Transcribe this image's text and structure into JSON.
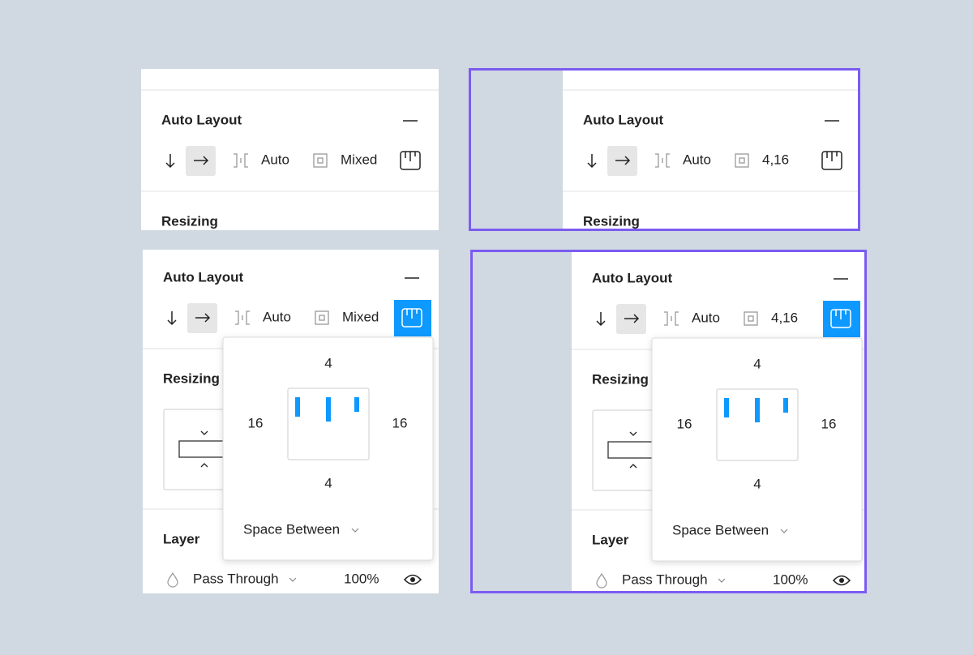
{
  "panels": [
    {
      "auto_layout": {
        "title": "Auto Layout",
        "spacing": "Auto",
        "padding": "Mixed"
      },
      "resizing": {
        "title": "Resizing"
      }
    },
    {
      "auto_layout": {
        "title": "Auto Layout",
        "spacing": "Auto",
        "padding": "4,16"
      },
      "resizing": {
        "title": "Resizing"
      }
    },
    {
      "auto_layout": {
        "title": "Auto Layout",
        "spacing": "Auto",
        "padding": "Mixed"
      },
      "resizing": {
        "title": "Resizing"
      },
      "padding_popover": {
        "top": "4",
        "left": "16",
        "right": "16",
        "bottom": "4",
        "alignment": "Space Between"
      },
      "layer": {
        "title": "Layer",
        "blend_mode": "Pass Through",
        "opacity": "100%"
      }
    },
    {
      "auto_layout": {
        "title": "Auto Layout",
        "spacing": "Auto",
        "padding": "4,16"
      },
      "resizing": {
        "title": "Resizing"
      },
      "padding_popover": {
        "top": "4",
        "left": "16",
        "right": "16",
        "bottom": "4",
        "alignment": "Space Between"
      },
      "layer": {
        "title": "Layer",
        "blend_mode": "Pass Through",
        "opacity": "100%"
      }
    }
  ]
}
